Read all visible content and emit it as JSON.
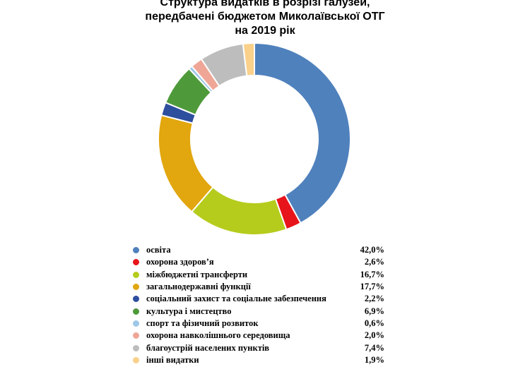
{
  "chart_data": {
    "type": "pie",
    "title_lines": [
      "Структура видатків в розрізі галузей,",
      "передбачені бюджетом Миколаївської ОТГ",
      "на 2019 рік"
    ],
    "value_suffix": "%",
    "slices": [
      {
        "label": "освіта",
        "value": 42.0,
        "value_label": "42,0%",
        "color": "#4F81BD"
      },
      {
        "label": "охорона здоров’я",
        "value": 2.6,
        "value_label": "2,6%",
        "color": "#E8141B"
      },
      {
        "label": "міжбюджетні трансферти",
        "value": 16.7,
        "value_label": "16,7%",
        "color": "#B5CC1C"
      },
      {
        "label": "загальнодержавні функції",
        "value": 17.7,
        "value_label": "17,7%",
        "color": "#E2A60E"
      },
      {
        "label": "соціальний захист та соціальне забезпечення",
        "value": 2.2,
        "value_label": "2,2%",
        "color": "#2E4E9E"
      },
      {
        "label": "культура і мистецтво",
        "value": 6.9,
        "value_label": "6,9%",
        "color": "#4E9A3A"
      },
      {
        "label": "спорт та фізичний розвиток",
        "value": 0.6,
        "value_label": "0,6%",
        "color": "#9EC8E8"
      },
      {
        "label": "охорона навколішнього середовища",
        "value": 2.0,
        "value_label": "2,0%",
        "color": "#EFA697"
      },
      {
        "label": "благоустрій населених пунктів",
        "value": 7.4,
        "value_label": "7,4%",
        "color": "#BDBDBD"
      },
      {
        "label": "інші видатки",
        "value": 1.9,
        "value_label": "1,9%",
        "color": "#FAD08A"
      }
    ],
    "legend_position": "bottom"
  }
}
